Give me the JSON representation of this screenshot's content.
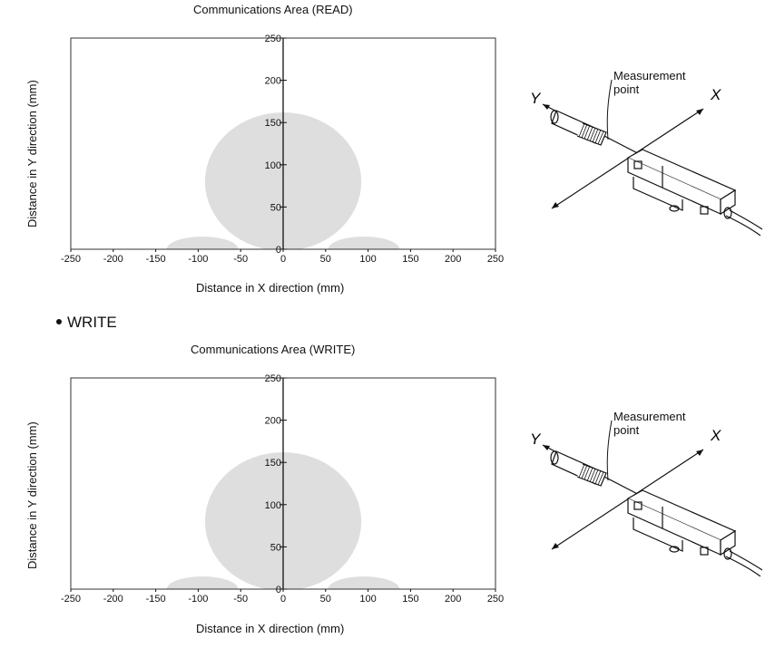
{
  "section": {
    "bullet_label": "WRITE"
  },
  "axis_labels": {
    "x": "Distance in X direction (mm)",
    "y": "Distance in Y direction (mm)"
  },
  "diagram": {
    "measurement_point": "Measurement point",
    "x_axis": "X",
    "y_axis": "Y"
  },
  "colors": {
    "area_fill": "#dedede",
    "axis": "#111111"
  },
  "chart_data": [
    {
      "type": "area",
      "title": "Communications Area (READ)",
      "xlabel": "Distance in X direction (mm)",
      "ylabel": "Distance in Y direction (mm)",
      "xlim": [
        -250,
        250
      ],
      "ylim": [
        0,
        250
      ],
      "xticks": [
        -250,
        -200,
        -150,
        -100,
        -50,
        0,
        50,
        100,
        150,
        200,
        250
      ],
      "yticks": [
        0,
        50,
        100,
        150,
        200,
        250
      ],
      "regions": [
        {
          "name": "main-lobe",
          "center": [
            0,
            80
          ],
          "x_half_width": 92,
          "y_half_height": 82
        },
        {
          "name": "left-side-lobe",
          "center": [
            -95,
            0
          ],
          "x_half_width": 42,
          "y_half_height": 15
        },
        {
          "name": "right-side-lobe",
          "center": [
            95,
            0
          ],
          "x_half_width": 42,
          "y_half_height": 15
        }
      ]
    },
    {
      "type": "area",
      "title": "Communications Area (WRITE)",
      "xlabel": "Distance in X direction (mm)",
      "ylabel": "Distance in Y direction (mm)",
      "xlim": [
        -250,
        250
      ],
      "ylim": [
        0,
        250
      ],
      "xticks": [
        -250,
        -200,
        -150,
        -100,
        -50,
        0,
        50,
        100,
        150,
        200,
        250
      ],
      "yticks": [
        0,
        50,
        100,
        150,
        200,
        250
      ],
      "regions": [
        {
          "name": "main-lobe",
          "center": [
            0,
            80
          ],
          "x_half_width": 92,
          "y_half_height": 82
        },
        {
          "name": "left-side-lobe",
          "center": [
            -95,
            0
          ],
          "x_half_width": 42,
          "y_half_height": 15
        },
        {
          "name": "right-side-lobe",
          "center": [
            95,
            0
          ],
          "x_half_width": 42,
          "y_half_height": 15
        }
      ]
    }
  ]
}
